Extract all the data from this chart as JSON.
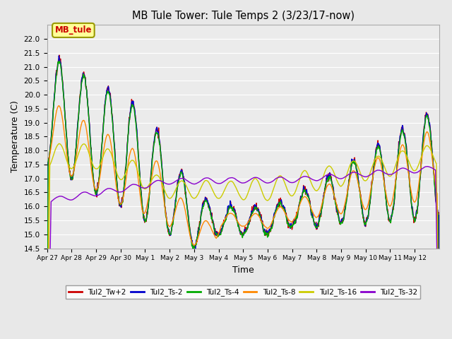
{
  "title": "MB Tule Tower: Tule Temps 2 (3/23/17-now)",
  "xlabel": "Time",
  "ylabel": "Temperature (C)",
  "ylim": [
    14.5,
    22.5
  ],
  "yticks": [
    14.5,
    15.0,
    15.5,
    16.0,
    16.5,
    17.0,
    17.5,
    18.0,
    18.5,
    19.0,
    19.5,
    20.0,
    20.5,
    21.0,
    21.5,
    22.0
  ],
  "xtick_labels": [
    "Apr 27",
    "Apr 28",
    "Apr 29",
    "Apr 30",
    "May 1",
    "May 2",
    "May 3",
    "May 4",
    "May 5",
    "May 6",
    "May 7",
    "May 8",
    "May 9",
    "May 10",
    "May 11",
    "May 12"
  ],
  "series_labels": [
    "Tul2_Tw+2",
    "Tul2_Ts-2",
    "Tul2_Ts-4",
    "Tul2_Ts-8",
    "Tul2_Ts-16",
    "Tul2_Ts-32"
  ],
  "series_colors": [
    "#cc0000",
    "#0000cc",
    "#00aa00",
    "#ff8800",
    "#cccc00",
    "#8800cc"
  ],
  "legend_box_color": "#ffff99",
  "legend_box_edge": "#999900",
  "legend_label": "MB_tule",
  "background_color": "#e8e8e8",
  "plot_background": "#ebebeb",
  "grid_color": "#ffffff",
  "figsize": [
    6.4,
    4.8
  ],
  "dpi": 100
}
